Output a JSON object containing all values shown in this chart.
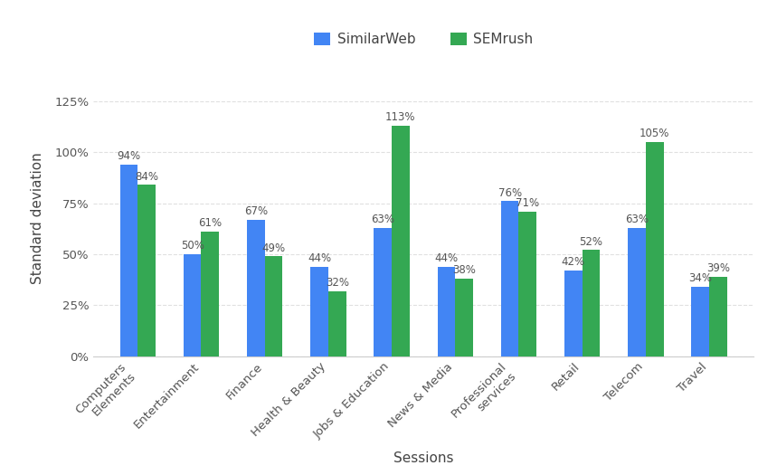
{
  "categories": [
    "Computers\nElements",
    "Entertainment",
    "Finance",
    "Health & Beauty",
    "Jobs & Education",
    "News & Media",
    "Professional\nservices",
    "Retail",
    "Telecom",
    "Travel"
  ],
  "similarweb": [
    94,
    50,
    67,
    44,
    63,
    44,
    76,
    42,
    63,
    34
  ],
  "semrush": [
    84,
    61,
    49,
    32,
    113,
    38,
    71,
    52,
    105,
    39
  ],
  "similarweb_color": "#4285f4",
  "semrush_color": "#34a853",
  "xlabel": "Sessions",
  "ylabel": "Standard deviation",
  "legend_labels": [
    "SimilarWeb",
    "SEMrush"
  ],
  "ylim": [
    0,
    135
  ],
  "yticks": [
    0,
    25,
    50,
    75,
    100,
    125
  ],
  "ytick_labels": [
    "0%",
    "25%",
    "50%",
    "75%",
    "100%",
    "125%"
  ],
  "bar_width": 0.28,
  "background_color": "#ffffff",
  "grid_color": "#e0e0e0",
  "label_fontsize": 8.5,
  "axis_label_fontsize": 11,
  "tick_fontsize": 9.5,
  "legend_fontsize": 11
}
